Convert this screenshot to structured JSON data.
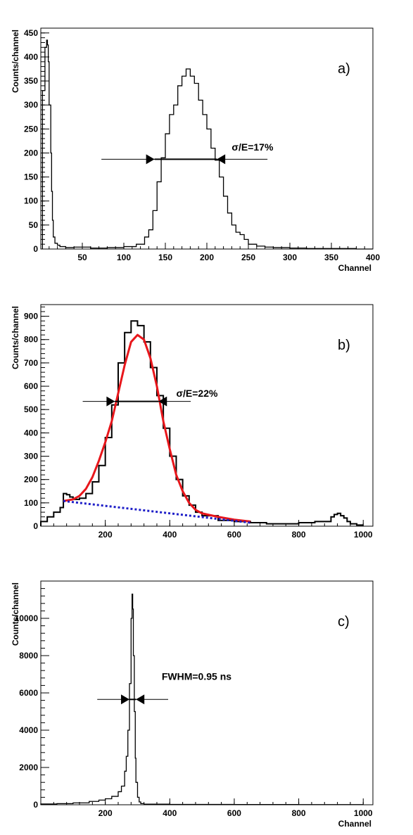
{
  "chart_data": [
    {
      "panel": "a)",
      "type": "line",
      "xlabel": "Channel",
      "ylabel": "Counts/channel",
      "xlim": [
        0,
        400
      ],
      "ylim": [
        0,
        460
      ],
      "xticks": [
        50,
        100,
        150,
        200,
        250,
        300,
        350,
        400
      ],
      "yticks": [
        0,
        50,
        100,
        150,
        200,
        250,
        300,
        350,
        400,
        450
      ],
      "annotation": {
        "text": "σ/E=17%",
        "arrow_y": 187,
        "arrow_left": 137,
        "arrow_right": 212,
        "line_from": 73,
        "line_to": 273,
        "text_x": 230,
        "text_y": 205
      },
      "series": [
        {
          "style": "histogram",
          "x": [
            2,
            5,
            7,
            8,
            9,
            10,
            12,
            13,
            14,
            15,
            17,
            20,
            23,
            30,
            40,
            60,
            80,
            100,
            115,
            125,
            130,
            135,
            140,
            145,
            150,
            155,
            160,
            165,
            170,
            175,
            180,
            185,
            190,
            195,
            200,
            205,
            210,
            215,
            220,
            225,
            230,
            235,
            240,
            245,
            250,
            260,
            270,
            280,
            300,
            320,
            350,
            380,
            400
          ],
          "y": [
            330,
            420,
            435,
            425,
            390,
            300,
            200,
            120,
            60,
            25,
            12,
            8,
            5,
            3,
            4,
            2,
            3,
            5,
            10,
            25,
            40,
            80,
            140,
            190,
            240,
            280,
            300,
            340,
            360,
            375,
            360,
            345,
            310,
            280,
            250,
            210,
            185,
            150,
            110,
            75,
            50,
            35,
            30,
            20,
            10,
            6,
            4,
            3,
            2,
            1,
            1,
            0,
            0
          ]
        }
      ]
    },
    {
      "panel": "b)",
      "type": "line",
      "xlabel": "",
      "ylabel": "Counts/channel",
      "xlim": [
        0,
        1030
      ],
      "ylim": [
        0,
        950
      ],
      "xticks": [
        200,
        400,
        600,
        800,
        1000
      ],
      "yticks": [
        0,
        100,
        200,
        300,
        400,
        500,
        600,
        700,
        800,
        900
      ],
      "annotation": {
        "text": "σ/E=22%",
        "arrow_y": 535,
        "arrow_left": 230,
        "arrow_right": 365,
        "line_from": 130,
        "line_to": 465,
        "text_x": 420,
        "text_y": 555
      },
      "series": [
        {
          "style": "histogram",
          "x": [
            0,
            20,
            40,
            60,
            70,
            80,
            90,
            100,
            120,
            140,
            160,
            180,
            200,
            220,
            240,
            260,
            280,
            300,
            320,
            340,
            360,
            380,
            400,
            420,
            440,
            460,
            480,
            500,
            550,
            600,
            650,
            700,
            750,
            800,
            850,
            900,
            910,
            920,
            930,
            940,
            950,
            960,
            980,
            1000
          ],
          "y": [
            20,
            40,
            60,
            80,
            140,
            135,
            125,
            115,
            120,
            140,
            190,
            260,
            380,
            520,
            700,
            830,
            880,
            860,
            790,
            680,
            560,
            420,
            300,
            200,
            130,
            90,
            60,
            45,
            25,
            20,
            15,
            10,
            10,
            15,
            20,
            40,
            50,
            55,
            45,
            35,
            20,
            10,
            5,
            0
          ]
        },
        {
          "style": "fit",
          "color": "#e8161b",
          "x": [
            70,
            100,
            120,
            140,
            160,
            180,
            200,
            220,
            240,
            260,
            280,
            300,
            320,
            340,
            360,
            380,
            400,
            420,
            440,
            460,
            480,
            500,
            550,
            600,
            650
          ],
          "y": [
            108,
            115,
            130,
            160,
            210,
            280,
            360,
            450,
            570,
            690,
            790,
            820,
            800,
            720,
            600,
            450,
            330,
            220,
            150,
            100,
            70,
            55,
            40,
            28,
            20
          ]
        },
        {
          "style": "background",
          "color": "#1f1fc8",
          "x": [
            70,
            650
          ],
          "y": [
            108,
            15
          ]
        }
      ]
    },
    {
      "panel": "c)",
      "type": "line",
      "xlabel": "Channel",
      "ylabel": "Counts/channel",
      "xlim": [
        0,
        1030
      ],
      "ylim": [
        0,
        12000
      ],
      "xticks": [
        200,
        400,
        600,
        800,
        1000
      ],
      "yticks": [
        0,
        2000,
        4000,
        6000,
        8000,
        10000
      ],
      "annotation": {
        "text": "FWHM=0.95 ns",
        "arrow_y": 5650,
        "arrow_left": 275,
        "arrow_right": 295,
        "line_from": 175,
        "line_to": 395,
        "text_x": 375,
        "text_y": 6700
      },
      "series": [
        {
          "style": "histogram",
          "x": [
            0,
            50,
            100,
            150,
            180,
            200,
            220,
            240,
            250,
            260,
            265,
            270,
            275,
            280,
            283,
            285,
            287,
            290,
            293,
            295,
            300,
            305,
            310,
            320,
            400,
            600,
            800,
            1000
          ],
          "y": [
            40,
            60,
            100,
            180,
            250,
            320,
            450,
            700,
            1000,
            1800,
            2600,
            4000,
            6500,
            10000,
            11300,
            10500,
            8000,
            5000,
            2500,
            1200,
            400,
            150,
            60,
            30,
            20,
            15,
            10,
            5
          ]
        }
      ]
    }
  ]
}
